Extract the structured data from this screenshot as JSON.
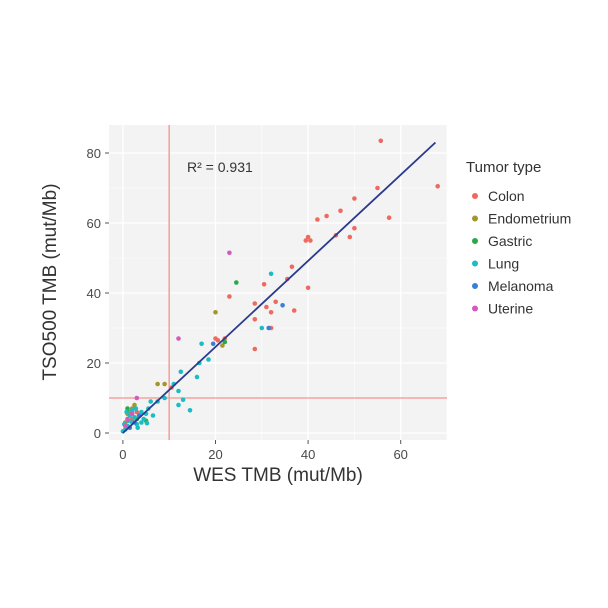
{
  "chart_data": {
    "type": "scatter",
    "xlabel": "WES TMB  (mut/Mb)",
    "ylabel": "TSO500 TMB  (mut/Mb)",
    "xlim": [
      -3,
      70
    ],
    "ylim": [
      -2,
      88
    ],
    "x_ticks": [
      0,
      20,
      40,
      60
    ],
    "y_ticks": [
      0,
      20,
      40,
      60,
      80
    ],
    "grid": true,
    "annotation": "R² = 0.931",
    "reference_lines": {
      "vertical_x": 10,
      "horizontal_y": 10,
      "color": "#f4a3a0"
    },
    "fit_line": {
      "x0": 0,
      "y0": 0,
      "x1": 67.5,
      "y1": 83,
      "color": "#2b3a8c"
    },
    "legend": {
      "title": "Tumor type",
      "position": "right"
    },
    "series": [
      {
        "name": "Colon",
        "color": "#ee6a5f",
        "points": [
          [
            55.7,
            83.5
          ],
          [
            68,
            70.5
          ],
          [
            55,
            70
          ],
          [
            50,
            67
          ],
          [
            47,
            63.5
          ],
          [
            44,
            62
          ],
          [
            42,
            61
          ],
          [
            57.5,
            61.5
          ],
          [
            50,
            58.5
          ],
          [
            49,
            56
          ],
          [
            40,
            56
          ],
          [
            39.5,
            55
          ],
          [
            40.5,
            55
          ],
          [
            46,
            56.5
          ],
          [
            36.5,
            47.5
          ],
          [
            35.5,
            44
          ],
          [
            40,
            41.5
          ],
          [
            30.5,
            42.5
          ],
          [
            28.5,
            37
          ],
          [
            33,
            37.5
          ],
          [
            31,
            36
          ],
          [
            32,
            34.5
          ],
          [
            37,
            35
          ],
          [
            28.5,
            32.5
          ],
          [
            23,
            39
          ],
          [
            32,
            30
          ],
          [
            28.5,
            24
          ],
          [
            22,
            27
          ],
          [
            20.5,
            26.5
          ],
          [
            20,
            27
          ],
          [
            10.5,
            13
          ],
          [
            3,
            6
          ],
          [
            2,
            4
          ],
          [
            1,
            2
          ]
        ]
      },
      {
        "name": "Endometrium",
        "color": "#a3962a",
        "points": [
          [
            20,
            34.5
          ],
          [
            21.5,
            25
          ],
          [
            9,
            14
          ],
          [
            7.5,
            14
          ],
          [
            2.5,
            8
          ],
          [
            2,
            7
          ],
          [
            1.5,
            6
          ],
          [
            1,
            5.5
          ],
          [
            0.5,
            3
          ]
        ]
      },
      {
        "name": "Gastric",
        "color": "#2aa84a",
        "points": [
          [
            24.5,
            43
          ],
          [
            22,
            26
          ],
          [
            3,
            4
          ],
          [
            1,
            7
          ],
          [
            5,
            3.5
          ]
        ]
      },
      {
        "name": "Lung",
        "color": "#1bbdc4",
        "points": [
          [
            32,
            45.5
          ],
          [
            30,
            30
          ],
          [
            17,
            25.5
          ],
          [
            18.5,
            21
          ],
          [
            16.5,
            20
          ],
          [
            16,
            16
          ],
          [
            12.5,
            17.5
          ],
          [
            11,
            14
          ],
          [
            12,
            12
          ],
          [
            13,
            9.5
          ],
          [
            12,
            8
          ],
          [
            14.5,
            6.5
          ],
          [
            9,
            10
          ],
          [
            7.5,
            9
          ],
          [
            6,
            9
          ],
          [
            5.5,
            7
          ],
          [
            5,
            5.5
          ],
          [
            4.5,
            4
          ],
          [
            4,
            3
          ],
          [
            3.5,
            5
          ],
          [
            3,
            2.5
          ],
          [
            2.5,
            4.5
          ],
          [
            2,
            3
          ],
          [
            1.5,
            5
          ],
          [
            1,
            2
          ],
          [
            0.5,
            1
          ],
          [
            0,
            0.5
          ],
          [
            1.2,
            3.5
          ],
          [
            0.8,
            6
          ],
          [
            2,
            6.5
          ],
          [
            3.2,
            1.5
          ],
          [
            6.5,
            5
          ],
          [
            4,
            6
          ],
          [
            0.3,
            2.5
          ],
          [
            2.8,
            7
          ],
          [
            5.2,
            2.8
          ]
        ]
      },
      {
        "name": "Melanoma",
        "color": "#3a7fd6",
        "points": [
          [
            34.5,
            36.5
          ],
          [
            31.5,
            30
          ],
          [
            19.5,
            25.5
          ],
          [
            3.5,
            5
          ],
          [
            2.5,
            3
          ],
          [
            1.5,
            1.5
          ]
        ]
      },
      {
        "name": "Uterine",
        "color": "#d45bbd",
        "points": [
          [
            23,
            51.5
          ],
          [
            12,
            27
          ],
          [
            3,
            10
          ],
          [
            1,
            4
          ],
          [
            2,
            5.5
          ],
          [
            0.5,
            2
          ]
        ]
      }
    ]
  }
}
